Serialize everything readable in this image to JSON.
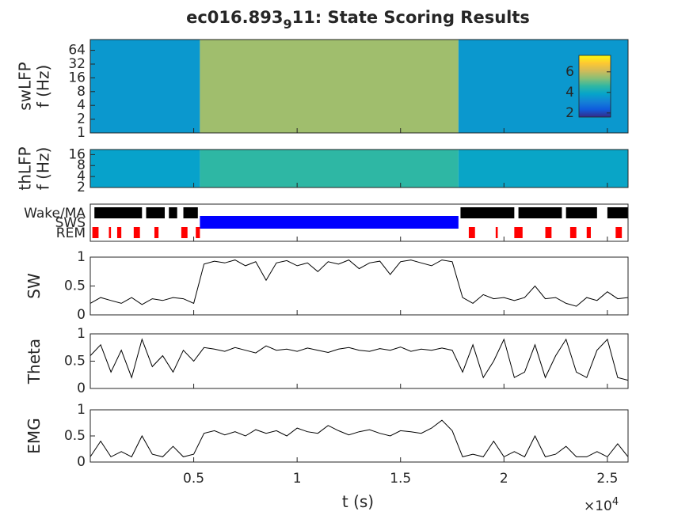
{
  "chart_data": [
    {
      "type": "heatmap",
      "title": "ec016.893",
      "title_subscript": "9",
      "title_rest": "11: State Scoring Results",
      "ylabel": [
        "swLFP",
        "f (Hz)"
      ],
      "yscale": "log",
      "ylim": [
        1,
        110
      ],
      "yticks": [
        1,
        2,
        4,
        8,
        16,
        32,
        64
      ],
      "xlim": [
        0,
        26000
      ],
      "x_edges": [
        0,
        5300,
        17800,
        26000
      ],
      "values": [
        3.6,
        5.6,
        3.6
      ],
      "colormap": "parula",
      "clim": [
        1.6,
        7.6
      ],
      "cticks": [
        2,
        4,
        6
      ]
    },
    {
      "type": "heatmap",
      "ylabel": [
        "thLFP",
        "f (Hz)"
      ],
      "yscale": "log",
      "ylim": [
        2,
        22
      ],
      "yticks": [
        2,
        4,
        8,
        16
      ],
      "xlim": [
        0,
        26000
      ],
      "x_edges": [
        0,
        5300,
        17800,
        26000
      ],
      "values": [
        3.8,
        4.6,
        3.9
      ],
      "colormap": "parula",
      "clim": [
        1.6,
        7.6
      ]
    },
    {
      "type": "raster",
      "xlim": [
        0,
        26000
      ],
      "series": [
        {
          "name": "Wake/MA",
          "color": "#000000",
          "intervals": [
            [
              200,
              2500
            ],
            [
              2700,
              3600
            ],
            [
              3800,
              4200
            ],
            [
              4500,
              5200
            ],
            [
              17900,
              20500
            ],
            [
              20700,
              22800
            ],
            [
              23000,
              24500
            ],
            [
              25000,
              26000
            ]
          ]
        },
        {
          "name": "SWS",
          "color": "#0000ff",
          "intervals": [
            [
              5300,
              17800
            ]
          ]
        },
        {
          "name": "REM",
          "color": "#ff0000",
          "intervals": [
            [
              100,
              400
            ],
            [
              900,
              1000
            ],
            [
              1300,
              1500
            ],
            [
              2100,
              2400
            ],
            [
              3100,
              3300
            ],
            [
              4400,
              4700
            ],
            [
              5100,
              5300
            ],
            [
              18300,
              18600
            ],
            [
              19600,
              19700
            ],
            [
              20500,
              20900
            ],
            [
              22000,
              22300
            ],
            [
              23200,
              23500
            ],
            [
              24000,
              24200
            ],
            [
              25400,
              25700
            ]
          ]
        }
      ]
    },
    {
      "type": "line",
      "ylabel": [
        "SW"
      ],
      "ylim": [
        0,
        1
      ],
      "yticks": [
        0,
        0.5,
        1
      ],
      "xlim": [
        0,
        26000
      ],
      "color": "#000000",
      "x": [
        0,
        500,
        1000,
        1500,
        2000,
        2500,
        3000,
        3500,
        4000,
        4500,
        5000,
        5500,
        6000,
        6500,
        7000,
        7500,
        8000,
        8500,
        9000,
        9500,
        10000,
        10500,
        11000,
        11500,
        12000,
        12500,
        13000,
        13500,
        14000,
        14500,
        15000,
        15500,
        16000,
        16500,
        17000,
        17500,
        18000,
        18500,
        19000,
        19500,
        20000,
        20500,
        21000,
        21500,
        22000,
        22500,
        23000,
        23500,
        24000,
        24500,
        25000,
        25500,
        26000
      ],
      "values": [
        0.2,
        0.3,
        0.25,
        0.2,
        0.3,
        0.18,
        0.28,
        0.25,
        0.3,
        0.28,
        0.2,
        0.88,
        0.93,
        0.9,
        0.95,
        0.85,
        0.92,
        0.6,
        0.9,
        0.94,
        0.85,
        0.9,
        0.75,
        0.92,
        0.88,
        0.95,
        0.8,
        0.9,
        0.93,
        0.7,
        0.92,
        0.95,
        0.9,
        0.85,
        0.95,
        0.92,
        0.3,
        0.2,
        0.35,
        0.28,
        0.3,
        0.25,
        0.3,
        0.5,
        0.28,
        0.3,
        0.2,
        0.15,
        0.3,
        0.25,
        0.4,
        0.28,
        0.3
      ]
    },
    {
      "type": "line",
      "ylabel": [
        "Theta"
      ],
      "ylim": [
        0,
        1
      ],
      "yticks": [
        0,
        0.5,
        1
      ],
      "xlim": [
        0,
        26000
      ],
      "color": "#000000",
      "x": [
        0,
        500,
        1000,
        1500,
        2000,
        2500,
        3000,
        3500,
        4000,
        4500,
        5000,
        5500,
        6000,
        6500,
        7000,
        7500,
        8000,
        8500,
        9000,
        9500,
        10000,
        10500,
        11000,
        11500,
        12000,
        12500,
        13000,
        13500,
        14000,
        14500,
        15000,
        15500,
        16000,
        16500,
        17000,
        17500,
        18000,
        18500,
        19000,
        19500,
        20000,
        20500,
        21000,
        21500,
        22000,
        22500,
        23000,
        23500,
        24000,
        24500,
        25000,
        25500,
        26000
      ],
      "values": [
        0.6,
        0.8,
        0.3,
        0.7,
        0.2,
        0.9,
        0.4,
        0.6,
        0.3,
        0.7,
        0.5,
        0.75,
        0.72,
        0.68,
        0.75,
        0.7,
        0.65,
        0.78,
        0.7,
        0.72,
        0.68,
        0.74,
        0.7,
        0.66,
        0.72,
        0.75,
        0.7,
        0.68,
        0.73,
        0.7,
        0.76,
        0.68,
        0.72,
        0.7,
        0.74,
        0.7,
        0.3,
        0.8,
        0.2,
        0.5,
        0.9,
        0.2,
        0.3,
        0.8,
        0.2,
        0.6,
        0.9,
        0.3,
        0.2,
        0.7,
        0.9,
        0.2,
        0.15
      ]
    },
    {
      "type": "line",
      "ylabel": [
        "EMG"
      ],
      "ylim": [
        0,
        1
      ],
      "yticks": [
        0,
        0.5,
        1
      ],
      "xlim": [
        0,
        26000
      ],
      "color": "#000000",
      "x": [
        0,
        500,
        1000,
        1500,
        2000,
        2500,
        3000,
        3500,
        4000,
        4500,
        5000,
        5500,
        6000,
        6500,
        7000,
        7500,
        8000,
        8500,
        9000,
        9500,
        10000,
        10500,
        11000,
        11500,
        12000,
        12500,
        13000,
        13500,
        14000,
        14500,
        15000,
        15500,
        16000,
        16500,
        17000,
        17500,
        18000,
        18500,
        19000,
        19500,
        20000,
        20500,
        21000,
        21500,
        22000,
        22500,
        23000,
        23500,
        24000,
        24500,
        25000,
        25500,
        26000
      ],
      "values": [
        0.1,
        0.4,
        0.1,
        0.2,
        0.1,
        0.5,
        0.15,
        0.1,
        0.3,
        0.1,
        0.15,
        0.55,
        0.6,
        0.52,
        0.58,
        0.5,
        0.62,
        0.55,
        0.6,
        0.5,
        0.65,
        0.58,
        0.55,
        0.7,
        0.6,
        0.52,
        0.58,
        0.62,
        0.55,
        0.5,
        0.6,
        0.58,
        0.55,
        0.65,
        0.8,
        0.6,
        0.1,
        0.15,
        0.1,
        0.4,
        0.1,
        0.2,
        0.1,
        0.5,
        0.1,
        0.15,
        0.3,
        0.1,
        0.1,
        0.2,
        0.1,
        0.35,
        0.1
      ],
      "xticks": [
        {
          "value": 5000,
          "label": "0.5"
        },
        {
          "value": 10000,
          "label": "1"
        },
        {
          "value": 15000,
          "label": "1.5"
        },
        {
          "value": 20000,
          "label": "2"
        },
        {
          "value": 25000,
          "label": "2.5"
        }
      ],
      "xlabel": "t (s)",
      "x_multiplier": "×10",
      "x_exponent": "4"
    }
  ]
}
